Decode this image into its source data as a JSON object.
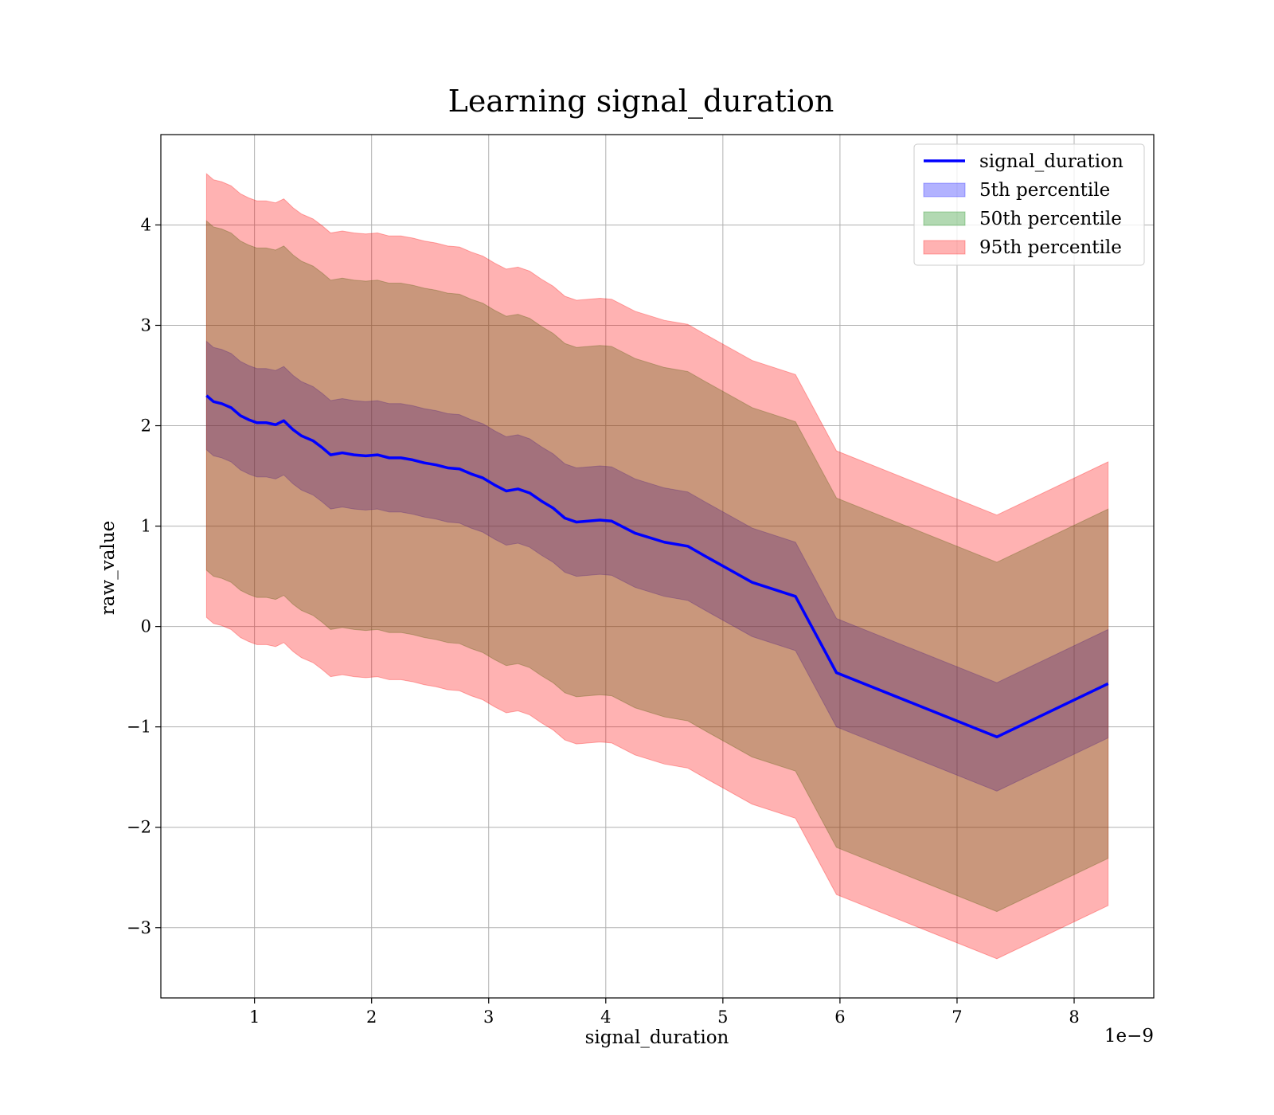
{
  "chart_data": {
    "type": "area",
    "title": "Learning signal_duration",
    "xlabel": "signal_duration",
    "ylabel": "raw_value",
    "x_offset_text": "1e−9",
    "x_scale": 1e-09,
    "xlim": [
      0.2,
      8.68
    ],
    "ylim": [
      -3.7,
      4.9
    ],
    "x_ticks": [
      1,
      2,
      3,
      4,
      5,
      6,
      7,
      8
    ],
    "x_tick_labels": [
      "1",
      "2",
      "3",
      "4",
      "5",
      "6",
      "7",
      "8"
    ],
    "y_ticks": [
      -3,
      -2,
      -1,
      0,
      1,
      2,
      3,
      4
    ],
    "y_tick_labels": [
      "−3",
      "−2",
      "−1",
      "0",
      "1",
      "2",
      "3",
      "4"
    ],
    "grid": true,
    "legend_position": "top-right",
    "x": [
      0.59,
      0.65,
      0.72,
      0.8,
      0.88,
      0.95,
      1.02,
      1.1,
      1.18,
      1.25,
      1.33,
      1.4,
      1.5,
      1.58,
      1.65,
      1.75,
      1.85,
      1.95,
      2.05,
      2.15,
      2.25,
      2.35,
      2.45,
      2.55,
      2.65,
      2.75,
      2.85,
      2.95,
      3.05,
      3.15,
      3.25,
      3.35,
      3.45,
      3.55,
      3.65,
      3.75,
      3.85,
      3.95,
      4.05,
      4.25,
      4.5,
      4.7,
      4.85,
      5.05,
      5.25,
      5.62,
      5.97,
      7.34,
      8.29
    ],
    "series": [
      {
        "name": "signal_duration",
        "kind": "line",
        "color": "#0000ff",
        "values": [
          2.3,
          2.24,
          2.22,
          2.18,
          2.1,
          2.06,
          2.03,
          2.03,
          2.01,
          2.05,
          1.96,
          1.9,
          1.85,
          1.78,
          1.71,
          1.73,
          1.71,
          1.7,
          1.71,
          1.68,
          1.68,
          1.66,
          1.63,
          1.61,
          1.58,
          1.57,
          1.52,
          1.48,
          1.41,
          1.35,
          1.37,
          1.33,
          1.25,
          1.18,
          1.08,
          1.04,
          1.05,
          1.06,
          1.05,
          0.93,
          0.84,
          0.8,
          0.7,
          0.57,
          0.44,
          0.3,
          -0.46,
          -1.1,
          -0.57
        ]
      },
      {
        "name": "5th percentile",
        "kind": "band",
        "color": "#0000ff",
        "alpha": 0.3,
        "lower": [
          1.76,
          1.7,
          1.68,
          1.64,
          1.56,
          1.52,
          1.49,
          1.49,
          1.47,
          1.51,
          1.42,
          1.36,
          1.31,
          1.24,
          1.17,
          1.19,
          1.17,
          1.16,
          1.17,
          1.14,
          1.14,
          1.12,
          1.09,
          1.07,
          1.04,
          1.03,
          0.98,
          0.94,
          0.87,
          0.81,
          0.83,
          0.79,
          0.71,
          0.64,
          0.54,
          0.5,
          0.51,
          0.52,
          0.51,
          0.39,
          0.3,
          0.26,
          0.16,
          0.03,
          -0.1,
          -0.24,
          -1.0,
          -1.64,
          -1.11
        ],
        "upper": [
          2.84,
          2.78,
          2.76,
          2.72,
          2.64,
          2.6,
          2.57,
          2.57,
          2.55,
          2.59,
          2.5,
          2.44,
          2.39,
          2.32,
          2.25,
          2.27,
          2.25,
          2.24,
          2.25,
          2.22,
          2.22,
          2.2,
          2.17,
          2.15,
          2.12,
          2.11,
          2.06,
          2.02,
          1.95,
          1.89,
          1.91,
          1.87,
          1.79,
          1.72,
          1.62,
          1.58,
          1.59,
          1.6,
          1.59,
          1.47,
          1.38,
          1.34,
          1.24,
          1.11,
          0.98,
          0.84,
          0.08,
          -0.56,
          -0.03
        ]
      },
      {
        "name": "50th percentile",
        "kind": "band",
        "color": "#008000",
        "alpha": 0.3,
        "lower": [
          0.56,
          0.5,
          0.48,
          0.44,
          0.36,
          0.32,
          0.29,
          0.29,
          0.27,
          0.31,
          0.22,
          0.16,
          0.11,
          0.04,
          -0.03,
          -0.01,
          -0.03,
          -0.04,
          -0.03,
          -0.06,
          -0.06,
          -0.08,
          -0.11,
          -0.13,
          -0.16,
          -0.17,
          -0.22,
          -0.26,
          -0.33,
          -0.39,
          -0.37,
          -0.41,
          -0.49,
          -0.56,
          -0.66,
          -0.7,
          -0.69,
          -0.68,
          -0.69,
          -0.81,
          -0.9,
          -0.94,
          -1.04,
          -1.17,
          -1.3,
          -1.44,
          -2.2,
          -2.84,
          -2.31
        ],
        "upper": [
          4.04,
          3.98,
          3.96,
          3.92,
          3.84,
          3.8,
          3.77,
          3.77,
          3.75,
          3.79,
          3.7,
          3.64,
          3.59,
          3.52,
          3.45,
          3.47,
          3.45,
          3.44,
          3.45,
          3.42,
          3.42,
          3.4,
          3.37,
          3.35,
          3.32,
          3.31,
          3.26,
          3.22,
          3.15,
          3.09,
          3.11,
          3.07,
          2.99,
          2.92,
          2.82,
          2.78,
          2.79,
          2.8,
          2.79,
          2.67,
          2.58,
          2.54,
          2.44,
          2.31,
          2.18,
          2.04,
          1.28,
          0.64,
          1.17
        ]
      },
      {
        "name": "95th percentile",
        "kind": "band",
        "color": "#ff0000",
        "alpha": 0.3,
        "lower": [
          0.09,
          0.03,
          0.01,
          -0.03,
          -0.11,
          -0.15,
          -0.18,
          -0.18,
          -0.2,
          -0.16,
          -0.25,
          -0.31,
          -0.36,
          -0.43,
          -0.5,
          -0.48,
          -0.5,
          -0.51,
          -0.5,
          -0.53,
          -0.53,
          -0.55,
          -0.58,
          -0.6,
          -0.63,
          -0.64,
          -0.69,
          -0.73,
          -0.8,
          -0.86,
          -0.84,
          -0.88,
          -0.96,
          -1.03,
          -1.13,
          -1.17,
          -1.16,
          -1.15,
          -1.16,
          -1.28,
          -1.37,
          -1.41,
          -1.51,
          -1.64,
          -1.77,
          -1.91,
          -2.67,
          -3.31,
          -2.78
        ],
        "upper": [
          4.51,
          4.45,
          4.43,
          4.39,
          4.31,
          4.27,
          4.24,
          4.24,
          4.22,
          4.26,
          4.17,
          4.11,
          4.06,
          3.99,
          3.92,
          3.94,
          3.92,
          3.91,
          3.92,
          3.89,
          3.89,
          3.87,
          3.84,
          3.82,
          3.79,
          3.78,
          3.73,
          3.69,
          3.62,
          3.56,
          3.58,
          3.54,
          3.46,
          3.39,
          3.29,
          3.25,
          3.26,
          3.27,
          3.26,
          3.14,
          3.05,
          3.01,
          2.91,
          2.78,
          2.65,
          2.51,
          1.75,
          1.11,
          1.64
        ]
      }
    ]
  }
}
